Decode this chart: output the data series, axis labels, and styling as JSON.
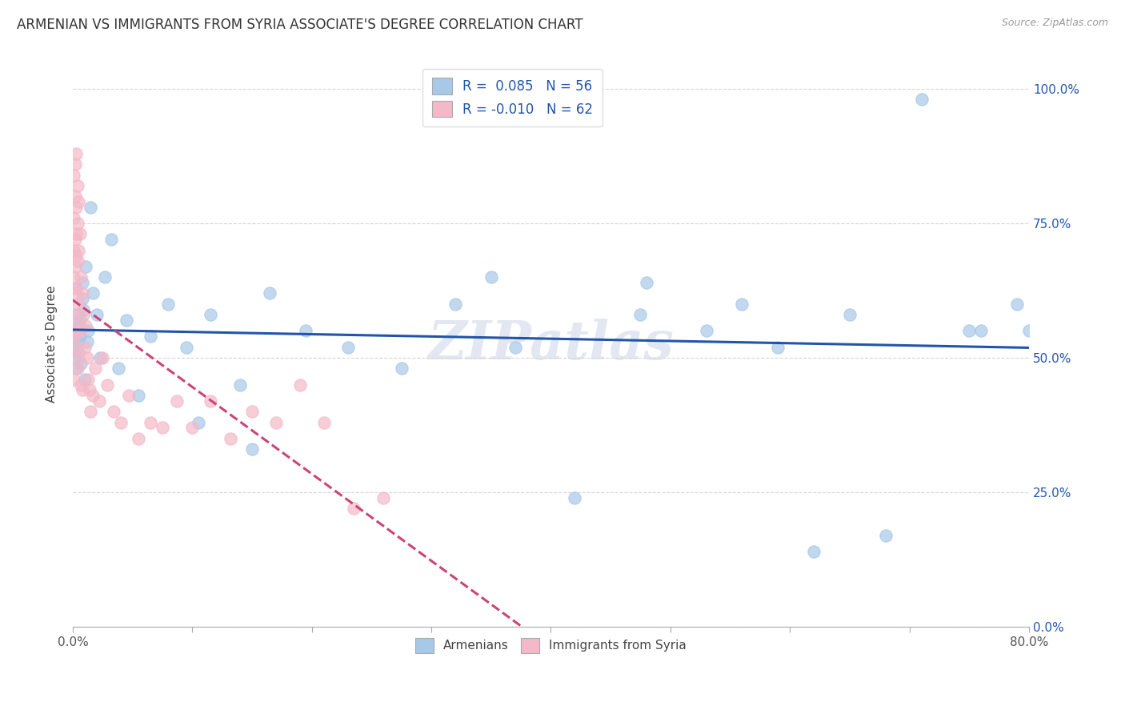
{
  "title": "ARMENIAN VS IMMIGRANTS FROM SYRIA ASSOCIATE'S DEGREE CORRELATION CHART",
  "source": "Source: ZipAtlas.com",
  "ylabel": "Associate's Degree",
  "legend_labels": [
    "Armenians",
    "Immigrants from Syria"
  ],
  "legend_r": [
    "R =  0.085",
    "R = -0.010"
  ],
  "legend_n": [
    "N = 56",
    "N = 62"
  ],
  "blue_color": "#a8c8e8",
  "pink_color": "#f4b8c8",
  "line_blue": "#2255aa",
  "line_pink": "#cc4477",
  "watermark": "ZIPatlas",
  "armenian_x": [
    0.001,
    0.002,
    0.002,
    0.003,
    0.003,
    0.004,
    0.004,
    0.005,
    0.005,
    0.006,
    0.006,
    0.007,
    0.008,
    0.008,
    0.009,
    0.01,
    0.011,
    0.012,
    0.013,
    0.015,
    0.017,
    0.02,
    0.023,
    0.027,
    0.032,
    0.038,
    0.045,
    0.055,
    0.065,
    0.08,
    0.095,
    0.115,
    0.14,
    0.165,
    0.195,
    0.23,
    0.275,
    0.32,
    0.37,
    0.42,
    0.475,
    0.53,
    0.59,
    0.65,
    0.71,
    0.76,
    0.79,
    0.8,
    0.105,
    0.15,
    0.35,
    0.48,
    0.56,
    0.62,
    0.68,
    0.75
  ],
  "armenian_y": [
    0.52,
    0.5,
    0.55,
    0.48,
    0.63,
    0.53,
    0.58,
    0.56,
    0.51,
    0.54,
    0.57,
    0.49,
    0.64,
    0.61,
    0.59,
    0.46,
    0.67,
    0.53,
    0.55,
    0.78,
    0.62,
    0.58,
    0.5,
    0.65,
    0.72,
    0.48,
    0.57,
    0.43,
    0.54,
    0.6,
    0.52,
    0.58,
    0.45,
    0.62,
    0.55,
    0.52,
    0.48,
    0.6,
    0.52,
    0.24,
    0.58,
    0.55,
    0.52,
    0.58,
    0.98,
    0.55,
    0.6,
    0.55,
    0.38,
    0.33,
    0.65,
    0.64,
    0.6,
    0.14,
    0.17,
    0.55
  ],
  "syria_x": [
    0.001,
    0.001,
    0.001,
    0.001,
    0.001,
    0.001,
    0.001,
    0.002,
    0.002,
    0.002,
    0.002,
    0.002,
    0.002,
    0.003,
    0.003,
    0.003,
    0.003,
    0.003,
    0.003,
    0.004,
    0.004,
    0.004,
    0.004,
    0.004,
    0.005,
    0.005,
    0.005,
    0.005,
    0.006,
    0.006,
    0.007,
    0.007,
    0.008,
    0.008,
    0.009,
    0.01,
    0.011,
    0.012,
    0.013,
    0.014,
    0.015,
    0.017,
    0.019,
    0.022,
    0.025,
    0.029,
    0.034,
    0.04,
    0.047,
    0.055,
    0.065,
    0.075,
    0.087,
    0.1,
    0.115,
    0.132,
    0.15,
    0.17,
    0.19,
    0.21,
    0.235,
    0.26
  ],
  "syria_y": [
    0.84,
    0.76,
    0.7,
    0.65,
    0.58,
    0.54,
    0.46,
    0.86,
    0.8,
    0.72,
    0.67,
    0.62,
    0.55,
    0.88,
    0.78,
    0.73,
    0.69,
    0.63,
    0.52,
    0.82,
    0.75,
    0.68,
    0.56,
    0.48,
    0.79,
    0.7,
    0.6,
    0.5,
    0.73,
    0.55,
    0.65,
    0.45,
    0.62,
    0.44,
    0.58,
    0.52,
    0.56,
    0.5,
    0.46,
    0.44,
    0.4,
    0.43,
    0.48,
    0.42,
    0.5,
    0.45,
    0.4,
    0.38,
    0.43,
    0.35,
    0.38,
    0.37,
    0.42,
    0.37,
    0.42,
    0.35,
    0.4,
    0.38,
    0.45,
    0.38,
    0.22,
    0.24
  ],
  "xmin": 0.0,
  "xmax": 0.8,
  "ymin": 0.0,
  "ymax": 1.05,
  "ytick_positions": [
    0.0,
    0.25,
    0.5,
    0.75,
    1.0
  ],
  "ytick_labels": [
    "0.0%",
    "25.0%",
    "50.0%",
    "75.0%",
    "100.0%"
  ]
}
